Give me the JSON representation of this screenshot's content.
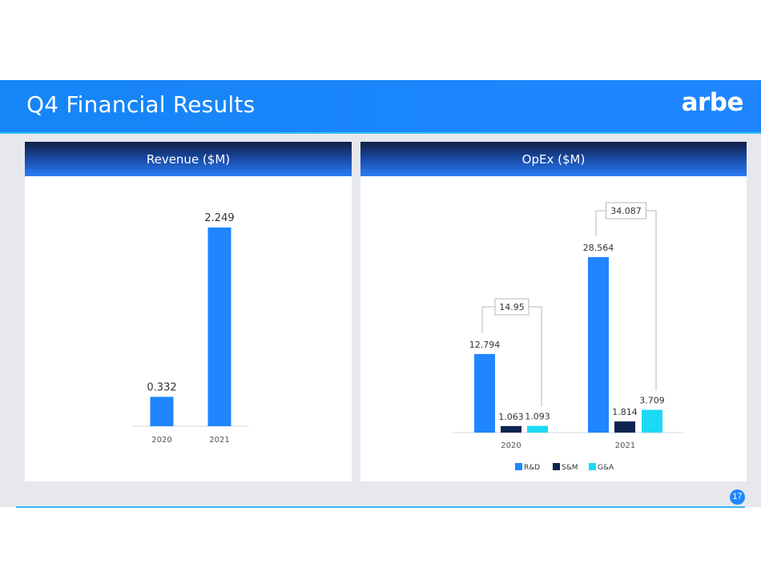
{
  "slide": {
    "title": "Q4 Financial Results",
    "logo": "arbe",
    "page_number": "17"
  },
  "colors": {
    "rd": "#1f86ff",
    "sm": "#0f2450",
    "ga": "#1cd9f5",
    "revenue": "#1f86ff"
  },
  "chart_data": [
    {
      "type": "bar",
      "title": "Revenue ($M)",
      "categories": [
        "2020",
        "2021"
      ],
      "series": [
        {
          "values": [
            0.332,
            2.249
          ]
        }
      ],
      "data_labels": [
        "0.332",
        "2.249"
      ],
      "ylim": [
        0,
        2.4
      ],
      "grid": false
    },
    {
      "type": "bar",
      "title": "OpEx ($M)",
      "categories": [
        "2020",
        "2021"
      ],
      "series": [
        {
          "name": "R&D",
          "values": [
            12.794,
            28.564
          ],
          "labels": [
            "12.794",
            "28.564"
          ]
        },
        {
          "name": "S&M",
          "values": [
            1.063,
            1.814
          ],
          "labels": [
            "1.063",
            "1.814"
          ]
        },
        {
          "name": "G&A",
          "values": [
            1.093,
            3.709
          ],
          "labels": [
            "1.093",
            "3.709"
          ]
        }
      ],
      "totals": [
        14.95,
        34.087
      ],
      "total_labels": [
        "14.95",
        "34.087"
      ],
      "legend": [
        "R&D",
        "S&M",
        "G&A"
      ],
      "legend_position": "bottom",
      "ylim": [
        0,
        34
      ],
      "grid": false
    }
  ]
}
